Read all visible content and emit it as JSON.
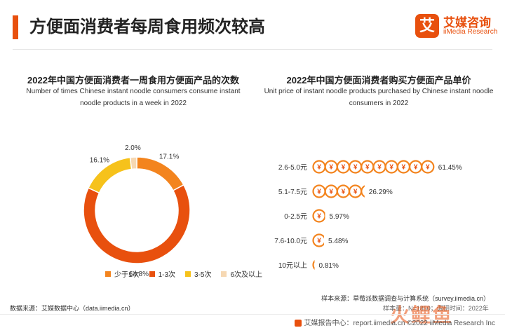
{
  "header": {
    "title": "方便面消费者每周食用频次较高",
    "logo_mark": "艾",
    "logo_cn": "艾媒咨询",
    "logo_en": "iiMedia Research"
  },
  "left_chart": {
    "title": "2022年中国方便面消费者一周食用方便面产品的次数",
    "subtitle": "Number of times Chinese instant noodle consumers consume instant noodle products in a week in 2022"
  },
  "right_chart": {
    "title": "2022年中国方便面消费者购买方便面产品单价",
    "subtitle": "Unit price of instant noodle products purchased by Chinese instant noodle consumers in 2022",
    "coin_symbol": "¥"
  },
  "chart_data": [
    {
      "type": "pie",
      "donut": true,
      "title": "2022年中国方便面消费者一周食用方便面产品的次数",
      "categories": [
        "少于1次",
        "1-3次",
        "3-5次",
        "6次及以上"
      ],
      "values": [
        17.1,
        64.8,
        16.1,
        2.0
      ],
      "labels": [
        "17.1%",
        "64.8%",
        "16.1%",
        "2.0%"
      ],
      "colors": [
        "#f3841e",
        "#e8500e",
        "#f6c21b",
        "#f6d8b3"
      ],
      "legend_position": "bottom"
    },
    {
      "type": "bar",
      "orientation": "horizontal",
      "title": "2022年中国方便面消费者购买方便面产品单价",
      "categories": [
        "2.6-5.0元",
        "5.1-7.5元",
        "0-2.5元",
        "7.6-10.0元",
        "10元以上"
      ],
      "values": [
        61.45,
        26.29,
        5.97,
        5.48,
        0.81
      ],
      "labels": [
        "61.45%",
        "26.29%",
        "5.97%",
        "5.48%",
        "0.81%"
      ],
      "color": "#f3841e"
    }
  ],
  "sources": {
    "left": "数据来源：艾媒数据中心（data.iimedia.cn）",
    "right": "样本来源：草莓派数据调查与计算系统（survey.iimedia.cn）",
    "right_2": "样本量：N=1850；调研时间：2022年"
  },
  "footer": {
    "text": "艾媒报告中心：report.iimedia.cn ©2022 iiMedia Research Inc"
  },
  "watermark": "火鲤鱼"
}
